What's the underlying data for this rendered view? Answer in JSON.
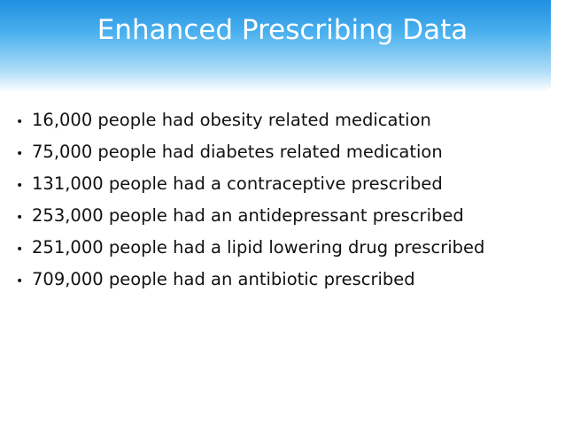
{
  "header": {
    "title": "Enhanced Prescribing Data"
  },
  "bullets": [
    "16,000 people had obesity related medication",
    "75,000 people had diabetes related medication",
    "131,000 people had a contraceptive prescribed",
    "253,000 people had an antidepressant prescribed",
    "251,000 people had a lipid lowering drug prescribed",
    "709,000 people had an antibiotic prescribed"
  ]
}
